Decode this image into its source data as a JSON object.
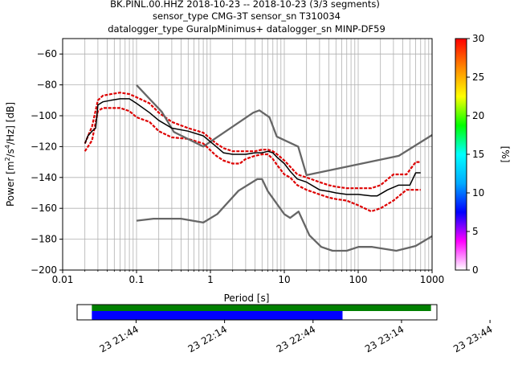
{
  "title_lines": [
    "BK.PINL.00.HHZ   2018-10-23 -- 2018-10-23  (3/3 segments)",
    "sensor_type CMG-3T sensor_sn T310034",
    "datalogger_type GuralpMinimus+ datalogger_sn MINP-DF59"
  ],
  "chart_data": {
    "type": "line",
    "xscale": "log",
    "xlabel": "Period [s]",
    "ylabel_parts": [
      "Power [m",
      "2",
      "/s",
      "4",
      "/Hz] [dB]"
    ],
    "xlim": [
      0.01,
      1000
    ],
    "ylim": [
      -200,
      -50
    ],
    "x_ticks": [
      {
        "value": 0.01,
        "label": "0.01"
      },
      {
        "value": 0.1,
        "label": "0.1"
      },
      {
        "value": 1,
        "label": "1"
      },
      {
        "value": 10,
        "label": "10"
      },
      {
        "value": 100,
        "label": "100"
      },
      {
        "value": 1000,
        "label": "1000"
      }
    ],
    "y_ticks": [
      {
        "value": -60,
        "label": "−60"
      },
      {
        "value": -80,
        "label": "−80"
      },
      {
        "value": -100,
        "label": "−100"
      },
      {
        "value": -120,
        "label": "−120"
      },
      {
        "value": -140,
        "label": "−140"
      },
      {
        "value": -160,
        "label": "−160"
      },
      {
        "value": -180,
        "label": "−180"
      },
      {
        "value": -200,
        "label": "−200"
      }
    ],
    "grid": true,
    "series": [
      {
        "role": "nhnm",
        "color": "#666666",
        "x": [
          0.1,
          0.22,
          0.32,
          0.8,
          3.8,
          4.6,
          6.3,
          7.9,
          15.4,
          20,
          354.8,
          1000
        ],
        "y": [
          -80.1,
          -97.5,
          -110.5,
          -120.0,
          -98.0,
          -96.5,
          -101.0,
          -113.5,
          -120.0,
          -138.5,
          -126.0,
          -112.5
        ]
      },
      {
        "role": "nlnm",
        "color": "#666666",
        "x": [
          0.1,
          0.17,
          0.4,
          0.8,
          1.24,
          2.4,
          4.3,
          5.0,
          6.0,
          10.0,
          12.0,
          15.6,
          21.9,
          31.6,
          45.0,
          70.0,
          101.0,
          154.0,
          328.0,
          600.0,
          1000.0
        ],
        "y": [
          -168.0,
          -166.7,
          -166.7,
          -169.2,
          -163.7,
          -148.6,
          -141.1,
          -141.1,
          -149.0,
          -163.8,
          -166.2,
          -162.1,
          -177.5,
          -185.0,
          -187.5,
          -187.5,
          -185.0,
          -185.0,
          -187.5,
          -184.4,
          -178.0
        ]
      },
      {
        "role": "mode",
        "color": "#000000",
        "x": [
          0.02,
          0.022,
          0.025,
          0.028,
          0.03,
          0.035,
          0.045,
          0.06,
          0.08,
          0.1,
          0.15,
          0.2,
          0.3,
          0.5,
          0.8,
          1.2,
          1.5,
          2.0,
          2.5,
          3.0,
          4.0,
          5.0,
          6.0,
          7.0,
          8.0,
          10.0,
          12.0,
          15.0,
          20.0,
          30.0,
          40.0,
          50.0,
          70.0,
          100.0,
          150.0,
          180.0,
          250.0,
          350.0,
          450.0,
          500.0,
          600.0,
          700.0
        ],
        "y": [
          -118.0,
          -113.0,
          -110.0,
          -108.0,
          -93.0,
          -91.0,
          -90.0,
          -89.0,
          -89.0,
          -92.0,
          -98.0,
          -103.0,
          -108.0,
          -110.0,
          -113.0,
          -120.0,
          -124.0,
          -125.0,
          -125.0,
          -125.0,
          -124.0,
          -124.0,
          -123.0,
          -124.0,
          -127.0,
          -131.0,
          -136.0,
          -141.0,
          -143.0,
          -148.0,
          -149.0,
          -150.0,
          -151.0,
          -151.0,
          -152.0,
          -152.0,
          -148.0,
          -145.0,
          -145.0,
          -145.0,
          -137.0,
          -137.0
        ]
      }
    ],
    "percentile_bands": {
      "color": "#dd0000",
      "x": [
        0.02,
        0.025,
        0.03,
        0.035,
        0.045,
        0.06,
        0.08,
        0.1,
        0.15,
        0.2,
        0.3,
        0.5,
        0.8,
        1.2,
        1.5,
        2.0,
        2.5,
        3.0,
        4.0,
        5.0,
        6.0,
        7.0,
        8.0,
        10.0,
        12.0,
        15.0,
        20.0,
        30.0,
        40.0,
        50.0,
        70.0,
        100.0,
        150.0,
        200.0,
        300.0,
        450.0,
        600.0,
        700.0
      ],
      "y_low": [
        -123.0,
        -116.0,
        -97.0,
        -95.0,
        -95.0,
        -95.0,
        -97.0,
        -101.0,
        -104.0,
        -110.0,
        -114.0,
        -115.0,
        -118.0,
        -126.0,
        -129.0,
        -131.0,
        -131.0,
        -128.0,
        -126.0,
        -125.0,
        -125.0,
        -128.0,
        -132.0,
        -138.0,
        -140.0,
        -145.0,
        -148.0,
        -151.0,
        -153.0,
        -154.0,
        -155.0,
        -158.0,
        -162.0,
        -160.0,
        -155.0,
        -148.0,
        -148.0,
        -148.0
      ],
      "y_high": [
        -118.0,
        -107.0,
        -90.0,
        -87.0,
        -86.0,
        -85.0,
        -86.0,
        -88.0,
        -92.0,
        -98.0,
        -104.0,
        -108.0,
        -111.0,
        -118.0,
        -121.0,
        -123.0,
        -123.0,
        -123.0,
        -123.0,
        -122.0,
        -122.0,
        -123.0,
        -125.0,
        -129.0,
        -133.0,
        -138.0,
        -140.0,
        -143.0,
        -145.0,
        -146.0,
        -147.0,
        -147.0,
        -147.0,
        -145.0,
        -138.0,
        -138.0,
        -130.0,
        -130.0
      ]
    },
    "colorbar": {
      "label": "[%]",
      "min": 0,
      "max": 30,
      "ticks": [
        {
          "value": 0,
          "label": "0"
        },
        {
          "value": 5,
          "label": "5"
        },
        {
          "value": 10,
          "label": "10"
        },
        {
          "value": 15,
          "label": "15"
        },
        {
          "value": 20,
          "label": "20"
        },
        {
          "value": 25,
          "label": "25"
        },
        {
          "value": 30,
          "label": "30"
        }
      ],
      "colors": [
        "#ffffff",
        "#ff00ff",
        "#0000ff",
        "#00aaff",
        "#00ffff",
        "#00ff00",
        "#ffff00",
        "#ff8800",
        "#ff0000"
      ]
    },
    "timeline": {
      "time_range_minutes": [
        -20,
        102
      ],
      "green_bar_minutes": [
        -15,
        100
      ],
      "blue_bar_minutes": [
        -15,
        70
      ],
      "green_color": "#008000",
      "blue_color": "#0000ff",
      "ticks": [
        {
          "value": 0,
          "label": "23 21:44"
        },
        {
          "value": 30,
          "label": "23 22:14"
        },
        {
          "value": 60,
          "label": "23 22:44"
        },
        {
          "value": 90,
          "label": "23 23:14"
        },
        {
          "value": 120,
          "label": "23 23:44"
        }
      ]
    }
  }
}
